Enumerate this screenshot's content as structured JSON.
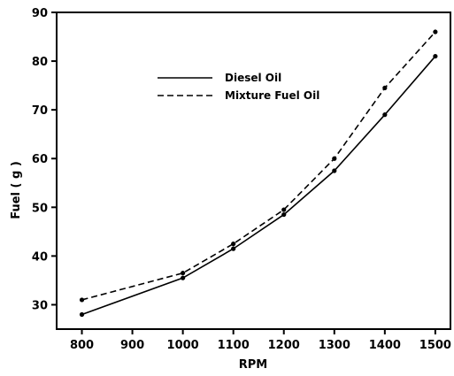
{
  "chart_data": {
    "type": "line",
    "title": "",
    "xlabel": "RPM",
    "ylabel": "Fuel ( g )",
    "xlim": [
      750,
      1530
    ],
    "ylim": [
      25,
      90
    ],
    "x_ticks": [
      800,
      900,
      1000,
      1100,
      1200,
      1300,
      1400,
      1500
    ],
    "y_ticks": [
      30,
      40,
      50,
      60,
      70,
      80,
      90
    ],
    "x_tick_labels": [
      "800",
      "900",
      "1000",
      "1100",
      "1200",
      "1300",
      "1400",
      "1500"
    ],
    "y_tick_labels": [
      "30",
      "40",
      "50",
      "60",
      "70",
      "80",
      "90"
    ],
    "grid": false,
    "legend_position": "upper-left",
    "series": [
      {
        "name": "Diesel Oil",
        "style": "solid",
        "color": "#000000",
        "x": [
          800,
          1000,
          1100,
          1200,
          1300,
          1400,
          1500
        ],
        "y": [
          28,
          35.5,
          41.5,
          48.5,
          57.5,
          69,
          81
        ]
      },
      {
        "name": "Mixture Fuel Oil",
        "style": "dashed",
        "color": "#000000",
        "x": [
          800,
          1000,
          1100,
          1200,
          1300,
          1400,
          1500
        ],
        "y": [
          31,
          36.5,
          42.5,
          49.5,
          60,
          74.5,
          86
        ]
      }
    ]
  }
}
